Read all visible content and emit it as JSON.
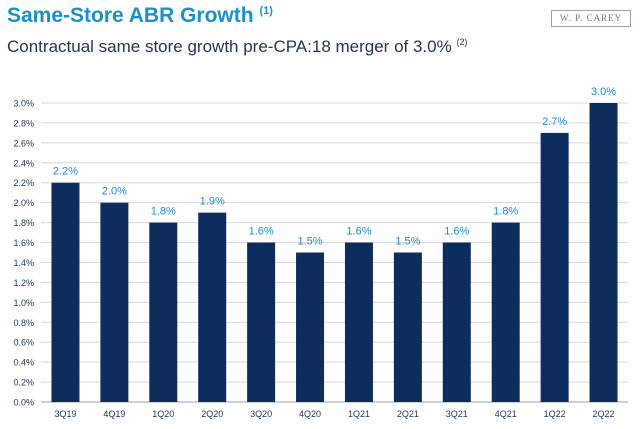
{
  "header": {
    "title": "Same-Store ABR Growth",
    "title_note": "(1)",
    "subtitle": "Contractual same store growth pre-CPA:18 merger of 3.0%",
    "subtitle_note": "(2)",
    "logo_text": "W. P. CAREY"
  },
  "colors": {
    "title": "#1a8fc9",
    "bar": "#0d2d5e",
    "label": "#1a8fc9",
    "text": "#1f3554"
  },
  "chart_data": {
    "type": "bar",
    "title": "",
    "xlabel": "",
    "ylabel": "",
    "ylim": [
      0,
      3.0
    ],
    "yticks": [
      "0.0%",
      "0.2%",
      "0.4%",
      "0.6%",
      "0.8%",
      "1.0%",
      "1.2%",
      "1.4%",
      "1.6%",
      "1.8%",
      "2.0%",
      "2.2%",
      "2.4%",
      "2.6%",
      "2.8%",
      "3.0%"
    ],
    "categories": [
      "3Q19",
      "4Q19",
      "1Q20",
      "2Q20",
      "3Q20",
      "4Q20",
      "1Q21",
      "2Q21",
      "3Q21",
      "4Q21",
      "1Q22",
      "2Q22"
    ],
    "values": [
      2.2,
      2.0,
      1.8,
      1.9,
      1.6,
      1.5,
      1.6,
      1.5,
      1.6,
      1.8,
      2.7,
      3.0
    ],
    "data_labels": [
      "2.2%",
      "2.0%",
      "1.8%",
      "1.9%",
      "1.6%",
      "1.5%",
      "1.6%",
      "1.5%",
      "1.6%",
      "1.8%",
      "2.7%",
      "3.0%"
    ],
    "grid": true,
    "legend": "none"
  }
}
